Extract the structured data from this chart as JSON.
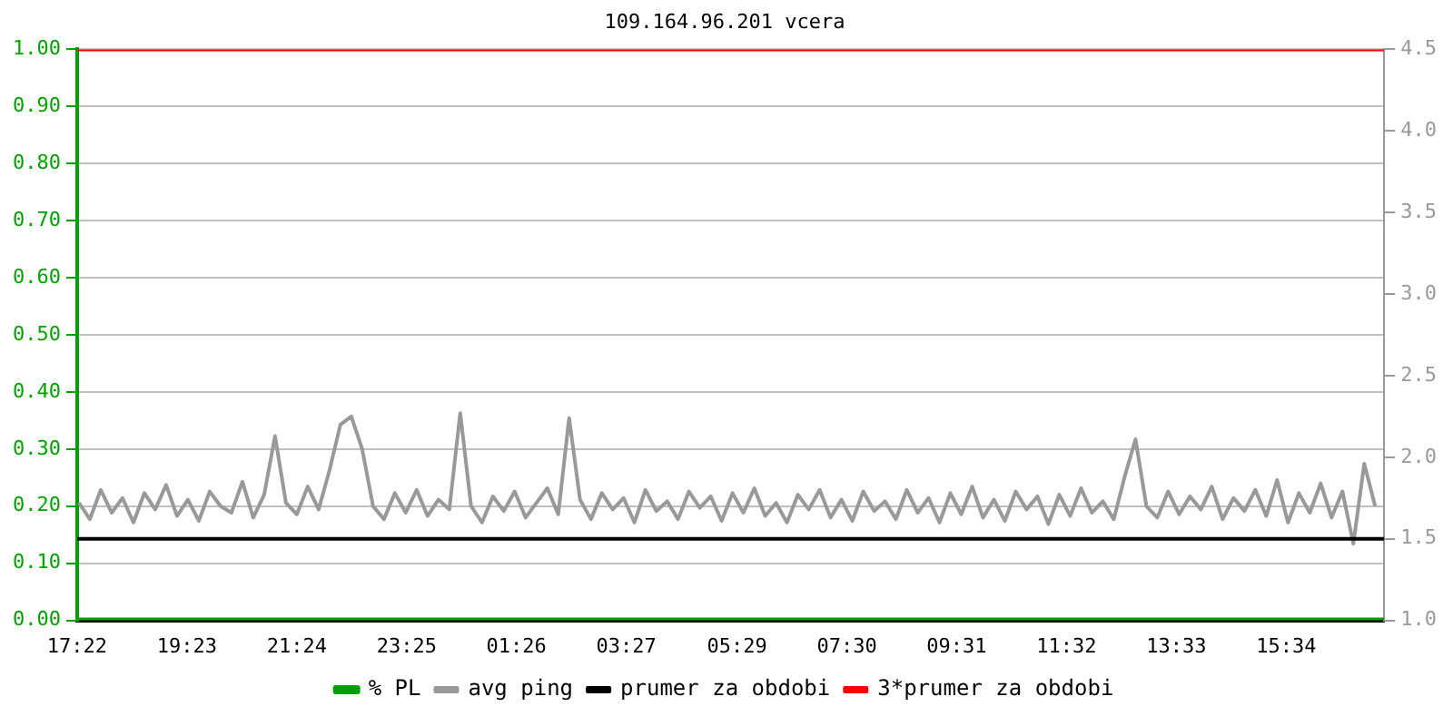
{
  "chart_data": {
    "type": "line",
    "title": "109.164.96.201 vcera",
    "xlim": [
      "--01-01T17:22",
      "--01-02T17:22"
    ],
    "xticks": [
      {
        "value": "--01-01T17:22",
        "label": "17:22"
      },
      {
        "value": "--01-01T19:23",
        "label": "19:23"
      },
      {
        "value": "--01-01T21:24",
        "label": "21:24"
      },
      {
        "value": "--01-01T23:25",
        "label": "23:25"
      },
      {
        "value": "--01-02T01:26",
        "label": "01:26"
      },
      {
        "value": "--01-02T03:27",
        "label": "03:27"
      },
      {
        "value": "--01-02T05:29",
        "label": "05:29"
      },
      {
        "value": "--01-02T07:30",
        "label": "07:30"
      },
      {
        "value": "--01-02T09:31",
        "label": "09:31"
      },
      {
        "value": "--01-02T11:32",
        "label": "11:32"
      },
      {
        "value": "--01-02T13:33",
        "label": "13:33"
      },
      {
        "value": "--01-02T15:34",
        "label": "15:34"
      }
    ],
    "ylim": [
      0,
      1
    ],
    "yticks": [
      {
        "value": 0,
        "label": "0.00"
      },
      {
        "value": 0.1,
        "label": "0.10"
      },
      {
        "value": 0.2,
        "label": "0.20"
      },
      {
        "value": 0.3,
        "label": "0.30"
      },
      {
        "value": 0.4,
        "label": "0.40"
      },
      {
        "value": 0.5,
        "label": "0.50"
      },
      {
        "value": 0.6,
        "label": "0.60"
      },
      {
        "value": 0.7,
        "label": "0.70"
      },
      {
        "value": 0.8,
        "label": "0.80"
      },
      {
        "value": 0.9,
        "label": "0.90"
      },
      {
        "value": 1,
        "label": "1.00"
      }
    ],
    "y2lim": [
      1,
      4.5
    ],
    "y2ticks": [
      {
        "value": 1,
        "label": "1.0"
      },
      {
        "value": 1.5,
        "label": "1.5"
      },
      {
        "value": 2,
        "label": "2.0"
      },
      {
        "value": 2.5,
        "label": "2.5"
      },
      {
        "value": 3,
        "label": "3.0"
      },
      {
        "value": 3.5,
        "label": "3.5"
      },
      {
        "value": 4,
        "label": "4.0"
      },
      {
        "value": 4.5,
        "label": "4.5"
      }
    ],
    "grid": "y",
    "legend": "bottom",
    "marker": "none",
    "line_style": "solid",
    "series": [
      {
        "name": "% PL",
        "color": "#00a000",
        "x": [
          "--01-01T17:22",
          "--01-02T17:22"
        ],
        "values": [
          0,
          0
        ]
      },
      {
        "name": "avg ping",
        "color": "#999999",
        "axis": "y2",
        "x": [
          "--01-01T17:24",
          "--01-01T17:36",
          "--01-01T17:48",
          "--01-01T18:00",
          "--01-01T18:12",
          "--01-01T18:24",
          "--01-01T18:36",
          "--01-01T18:48",
          "--01-01T19:00",
          "--01-01T19:12",
          "--01-01T19:24",
          "--01-01T19:36",
          "--01-01T19:48",
          "--01-01T20:00",
          "--01-01T20:12",
          "--01-01T20:24",
          "--01-01T20:36",
          "--01-01T20:48",
          "--01-01T21:00",
          "--01-01T21:12",
          "--01-01T21:24",
          "--01-01T21:36",
          "--01-01T21:48",
          "--01-01T22:00",
          "--01-01T22:12",
          "--01-01T22:24",
          "--01-01T22:36",
          "--01-01T22:48",
          "--01-01T23:00",
          "--01-01T23:12",
          "--01-01T23:24",
          "--01-01T23:36",
          "--01-01T23:48",
          "--01-02T00:00",
          "--01-02T00:12",
          "--01-02T00:24",
          "--01-02T00:36",
          "--01-02T00:48",
          "--01-02T01:00",
          "--01-02T01:12",
          "--01-02T01:24",
          "--01-02T01:36",
          "--01-02T01:48",
          "--01-02T02:00",
          "--01-02T02:12",
          "--01-02T02:24",
          "--01-02T02:36",
          "--01-02T02:48",
          "--01-02T03:00",
          "--01-02T03:12",
          "--01-02T03:24",
          "--01-02T03:36",
          "--01-02T03:48",
          "--01-02T04:00",
          "--01-02T04:12",
          "--01-02T04:24",
          "--01-02T04:36",
          "--01-02T04:48",
          "--01-02T05:00",
          "--01-02T05:12",
          "--01-02T05:24",
          "--01-02T05:36",
          "--01-02T05:48",
          "--01-02T06:00",
          "--01-02T06:12",
          "--01-02T06:24",
          "--01-02T06:36",
          "--01-02T06:48",
          "--01-02T07:00",
          "--01-02T07:12",
          "--01-02T07:24",
          "--01-02T07:36",
          "--01-02T07:48",
          "--01-02T08:00",
          "--01-02T08:12",
          "--01-02T08:24",
          "--01-02T08:36",
          "--01-02T08:48",
          "--01-02T09:00",
          "--01-02T09:12",
          "--01-02T09:24",
          "--01-02T09:36",
          "--01-02T09:48",
          "--01-02T10:00",
          "--01-02T10:12",
          "--01-02T10:24",
          "--01-02T10:36",
          "--01-02T10:48",
          "--01-02T11:00",
          "--01-02T11:12",
          "--01-02T11:24",
          "--01-02T11:36",
          "--01-02T11:48",
          "--01-02T12:00",
          "--01-02T12:12",
          "--01-02T12:24",
          "--01-02T12:36",
          "--01-02T12:48",
          "--01-02T13:00",
          "--01-02T13:12",
          "--01-02T13:24",
          "--01-02T13:36",
          "--01-02T13:48",
          "--01-02T14:00",
          "--01-02T14:12",
          "--01-02T14:24",
          "--01-02T14:36",
          "--01-02T14:48",
          "--01-02T15:00",
          "--01-02T15:12",
          "--01-02T15:24",
          "--01-02T15:36",
          "--01-02T15:48",
          "--01-02T16:00",
          "--01-02T16:12",
          "--01-02T16:24",
          "--01-02T16:36",
          "--01-02T16:48",
          "--01-02T17:00",
          "--01-02T17:12"
        ],
        "values": [
          1.72,
          1.62,
          1.8,
          1.66,
          1.75,
          1.6,
          1.78,
          1.68,
          1.83,
          1.64,
          1.74,
          1.61,
          1.79,
          1.7,
          1.66,
          1.85,
          1.63,
          1.77,
          2.13,
          1.72,
          1.65,
          1.82,
          1.68,
          1.92,
          2.2,
          2.25,
          2.05,
          1.7,
          1.62,
          1.78,
          1.66,
          1.8,
          1.64,
          1.74,
          1.68,
          2.27,
          1.7,
          1.6,
          1.76,
          1.67,
          1.79,
          1.63,
          1.72,
          1.81,
          1.65,
          2.24,
          1.74,
          1.62,
          1.78,
          1.68,
          1.75,
          1.6,
          1.8,
          1.67,
          1.73,
          1.62,
          1.79,
          1.69,
          1.76,
          1.61,
          1.78,
          1.66,
          1.81,
          1.64,
          1.72,
          1.6,
          1.77,
          1.68,
          1.8,
          1.63,
          1.74,
          1.61,
          1.79,
          1.67,
          1.73,
          1.62,
          1.8,
          1.66,
          1.75,
          1.6,
          1.78,
          1.65,
          1.82,
          1.63,
          1.74,
          1.61,
          1.79,
          1.68,
          1.76,
          1.59,
          1.77,
          1.64,
          1.81,
          1.66,
          1.73,
          1.62,
          1.88,
          2.11,
          1.7,
          1.63,
          1.79,
          1.65,
          1.76,
          1.68,
          1.82,
          1.62,
          1.75,
          1.67,
          1.8,
          1.64,
          1.86,
          1.6,
          1.78,
          1.66,
          1.84,
          1.63,
          1.79,
          1.47,
          1.96,
          1.7
        ]
      },
      {
        "name": "prumer za obdobi",
        "color": "#000000",
        "axis": "y2",
        "x": [
          "--01-01T17:22",
          "--01-02T17:22"
        ],
        "values": [
          1.5,
          1.5
        ]
      },
      {
        "name": "3*prumer za obdobi",
        "color": "#ff0000",
        "axis": "y2",
        "x": [
          "--01-01T17:22",
          "--01-02T17:22"
        ],
        "values": [
          4.5,
          4.5
        ]
      }
    ]
  }
}
